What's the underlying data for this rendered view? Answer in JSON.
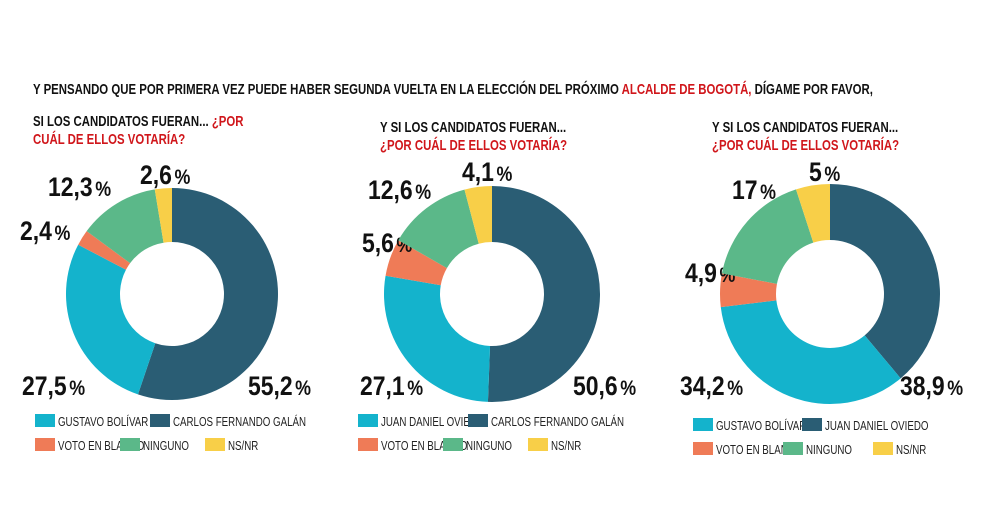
{
  "headline": {
    "before": "Y PENSANDO QUE POR PRIMERA VEZ PUEDE HABER SEGUNDA VUELTA EN LA ELECCIÓN DEL PRÓXIMO ",
    "highlight": "ALCALDE DE BOGOTÁ,",
    "after": " DÍGAME POR FAVOR,"
  },
  "colors": {
    "teal": "#14b3cc",
    "dark_blue": "#2a5d74",
    "orange": "#ef7b57",
    "green": "#5bb889",
    "yellow": "#f8cf48",
    "red_text": "#d0161b"
  },
  "chart_data": [
    {
      "type": "pie",
      "subtitle_black": "SI LOS CANDIDATOS FUERAN...",
      "subtitle_red": "¿POR CUÁL DE ELLOS VOTARÍA?",
      "labels": [
        "CARLOS FERNANDO GALÁN",
        "GUSTAVO BOLÍVAR",
        "VOTO EN BLANCO",
        "NINGUNO",
        "NS/NR"
      ],
      "values": [
        55.2,
        27.5,
        2.4,
        12.3,
        2.6
      ],
      "value_labels": [
        "55,2",
        "27,5",
        "2,4",
        "12,3",
        "2,6"
      ],
      "colors": [
        "#2a5d74",
        "#14b3cc",
        "#ef7b57",
        "#5bb889",
        "#f8cf48"
      ],
      "legend": [
        "GUSTAVO BOLÍVAR",
        "CARLOS FERNANDO GALÁN",
        "VOTO EN BLANCO",
        "NINGUNO",
        "NS/NR"
      ],
      "legend_colors": [
        "#14b3cc",
        "#2a5d74",
        "#ef7b57",
        "#5bb889",
        "#f8cf48"
      ]
    },
    {
      "type": "pie",
      "subtitle_black": "Y SI LOS CANDIDATOS FUERAN...",
      "subtitle_red": "¿POR CUÁL DE ELLOS VOTARÍA?",
      "labels": [
        "CARLOS FERNANDO GALÁN",
        "JUAN DANIEL OVIEDO",
        "VOTO EN BLANCO",
        "NINGUNO",
        "NS/NR"
      ],
      "values": [
        50.6,
        27.1,
        5.6,
        12.6,
        4.1
      ],
      "value_labels": [
        "50,6",
        "27,1",
        "5,6",
        "12,6",
        "4,1"
      ],
      "colors": [
        "#2a5d74",
        "#14b3cc",
        "#ef7b57",
        "#5bb889",
        "#f8cf48"
      ],
      "legend": [
        "JUAN DANIEL OVIEDO",
        "CARLOS FERNANDO GALÁN",
        "VOTO EN BLANCO",
        "NINGUNO",
        "NS/NR"
      ],
      "legend_colors": [
        "#14b3cc",
        "#2a5d74",
        "#ef7b57",
        "#5bb889",
        "#f8cf48"
      ]
    },
    {
      "type": "pie",
      "subtitle_black": "Y SI LOS CANDIDATOS FUERAN...",
      "subtitle_red": "¿POR CUÁL DE ELLOS VOTARÍA?",
      "labels": [
        "JUAN DANIEL OVIEDO",
        "GUSTAVO BOLÍVAR",
        "VOTO EN BLANCO",
        "NINGUNO",
        "NS/NR"
      ],
      "values": [
        38.9,
        34.2,
        4.9,
        17,
        5
      ],
      "value_labels": [
        "38,9",
        "34,2",
        "4,9",
        "17",
        "5"
      ],
      "colors": [
        "#2a5d74",
        "#14b3cc",
        "#ef7b57",
        "#5bb889",
        "#f8cf48"
      ],
      "legend": [
        "GUSTAVO BOLÍVAR",
        "JUAN DANIEL OVIEDO",
        "VOTO EN BLANCO",
        "NINGUNO",
        "NS/NR"
      ],
      "legend_colors": [
        "#14b3cc",
        "#2a5d74",
        "#ef7b57",
        "#5bb889",
        "#f8cf48"
      ]
    }
  ],
  "percent_sign": "%"
}
